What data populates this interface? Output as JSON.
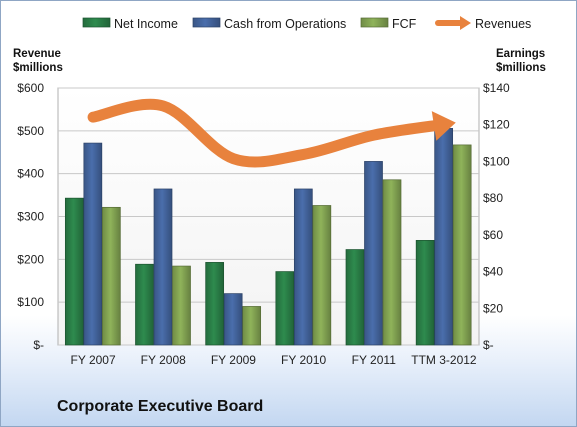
{
  "company_name": "Corporate Executive Board",
  "chart_data": {
    "type": "bar",
    "categories": [
      "FY 2007",
      "FY 2008",
      "FY 2009",
      "FY 2010",
      "FY 2011",
      "TTM 3-2012"
    ],
    "series": [
      {
        "name": "Net Income",
        "axis": "right",
        "color": "#2e8b4e",
        "values": [
          80,
          44,
          45,
          40,
          52,
          57
        ]
      },
      {
        "name": "Cash from Operations",
        "axis": "right",
        "color": "#4a6eac",
        "values": [
          110,
          85,
          28,
          85,
          100,
          118
        ]
      },
      {
        "name": "FCF",
        "axis": "right",
        "color": "#8fb35a",
        "values": [
          75,
          43,
          21,
          76,
          90,
          109
        ]
      },
      {
        "name": "Revenues",
        "axis": "left",
        "type": "line",
        "color": "#e8823d",
        "values": [
          532,
          558,
          435,
          445,
          490,
          515
        ]
      }
    ],
    "left_axis": {
      "title_line1": "Revenue",
      "title_line2": "$millions",
      "ylim": [
        0,
        600
      ],
      "ticks": [
        0,
        100,
        200,
        300,
        400,
        500,
        600
      ],
      "tick_labels": [
        "$-",
        "$100",
        "$200",
        "$300",
        "$400",
        "$500",
        "$600"
      ]
    },
    "right_axis": {
      "title_line1": "Earnings",
      "title_line2": "$millions",
      "ylim": [
        0,
        140
      ],
      "ticks": [
        0,
        20,
        40,
        60,
        80,
        100,
        120,
        140
      ],
      "tick_labels": [
        "$-",
        "$20",
        "$40",
        "$60",
        "$80",
        "$100",
        "$120",
        "$140"
      ]
    },
    "grid": true,
    "legend_position": "top"
  }
}
